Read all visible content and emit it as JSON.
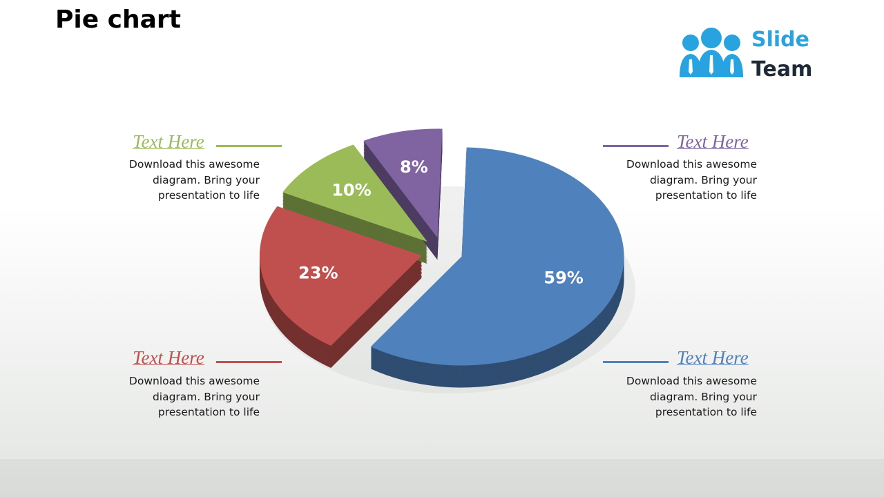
{
  "chart_data": {
    "type": "pie",
    "title": "Pie chart",
    "values": [
      59,
      23,
      10,
      8
    ],
    "value_labels": [
      "59%",
      "23%",
      "10%",
      "8%"
    ],
    "colors": [
      "#4f81bd",
      "#c0504d",
      "#9bbb59",
      "#8064a2"
    ]
  },
  "logo": {
    "line1": "Slide",
    "line2": "Team"
  },
  "callouts": [
    {
      "heading": "Text Here",
      "body": "Download this awesome diagram. Bring your presentation to life"
    },
    {
      "heading": "Text Here",
      "body": "Download this awesome diagram. Bring your presentation to life"
    },
    {
      "heading": "Text Here",
      "body": "Download this awesome diagram. Bring your presentation to life"
    },
    {
      "heading": "Text Here",
      "body": "Download this awesome diagram. Bring your presentation to life"
    }
  ]
}
